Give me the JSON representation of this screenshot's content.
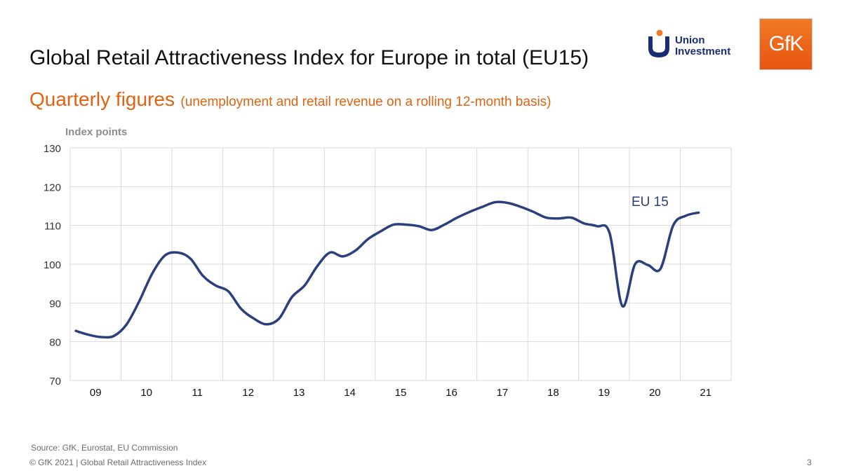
{
  "header": {
    "title": "Global Retail Attractiveness Index for Europe in total (EU15)",
    "subtitle_main": "Quarterly figures",
    "subtitle_note": "(unemployment and retail revenue on a rolling 12-month basis)"
  },
  "logos": {
    "union_investment": {
      "line1": "Union",
      "line2": "Investment"
    },
    "gfk": "GfK"
  },
  "chart_data": {
    "type": "line",
    "ylabel": "Index points",
    "ylim": [
      70,
      130
    ],
    "yticks": [
      70,
      80,
      90,
      100,
      110,
      120,
      130
    ],
    "categories": [
      "09",
      "10",
      "11",
      "12",
      "13",
      "14",
      "15",
      "16",
      "17",
      "18",
      "19",
      "20",
      "21"
    ],
    "grid": true,
    "annotation": "EU 15",
    "line_color": "#2b3f7c",
    "series": [
      {
        "name": "EU 15",
        "x": [
          2009.0,
          2009.25,
          2009.5,
          2009.75,
          2010.0,
          2010.25,
          2010.5,
          2010.75,
          2011.0,
          2011.25,
          2011.5,
          2011.75,
          2012.0,
          2012.25,
          2012.5,
          2012.75,
          2013.0,
          2013.25,
          2013.5,
          2013.75,
          2014.0,
          2014.25,
          2014.5,
          2014.75,
          2015.0,
          2015.25,
          2015.5,
          2015.75,
          2016.0,
          2016.25,
          2016.5,
          2016.75,
          2017.0,
          2017.25,
          2017.5,
          2017.75,
          2018.0,
          2018.25,
          2018.5,
          2018.75,
          2019.0,
          2019.25,
          2019.5,
          2019.75,
          2020.0,
          2020.25,
          2020.5,
          2020.75,
          2021.0,
          2021.25
        ],
        "values": [
          82.8,
          81.8,
          81.2,
          81.5,
          84.5,
          90.5,
          97.5,
          102.2,
          103.0,
          101.5,
          97.0,
          94.5,
          93.0,
          88.5,
          86.0,
          84.5,
          86.0,
          91.5,
          94.5,
          99.5,
          103.0,
          102.0,
          103.5,
          106.5,
          108.5,
          110.2,
          110.2,
          109.8,
          108.8,
          110.2,
          112.0,
          113.5,
          114.8,
          116.0,
          115.8,
          114.8,
          113.5,
          112.0,
          111.8,
          112.0,
          110.5,
          109.8,
          108.0,
          89.2,
          100.0,
          99.8,
          98.8,
          110.0,
          112.5,
          113.3
        ]
      }
    ]
  },
  "footer": {
    "source": "Source: GfK, Eurostat, EU Commission",
    "copyright": "© GfK 2021 | Global Retail Attractiveness Index",
    "page": "3"
  }
}
